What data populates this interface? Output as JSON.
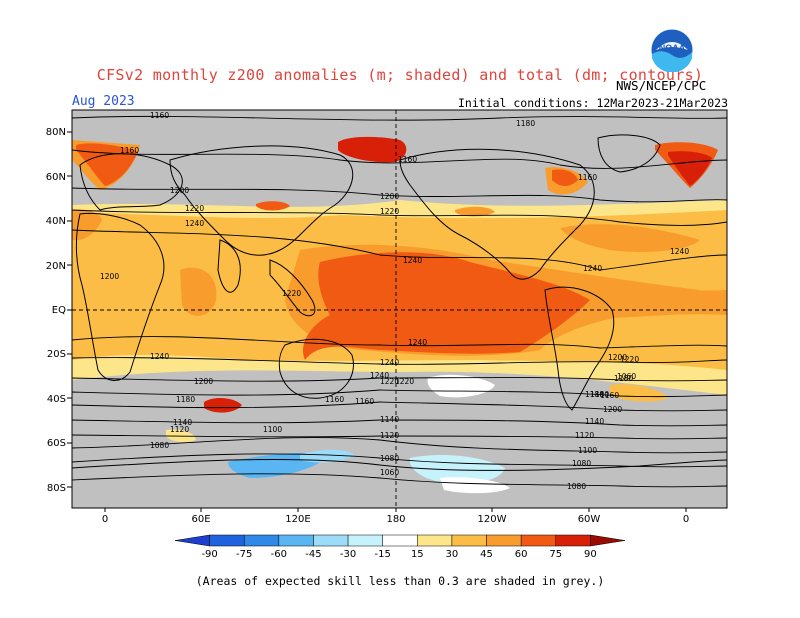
{
  "header": {
    "title": "CFSv2 monthly z200 anomalies (m; shaded) and total (dm; contours)",
    "month": "Aug 2023",
    "initial_conditions": "Initial conditions: 12Mar2023-21Mar2023",
    "agency": "NWS/NCEP/CPC",
    "logo_text": "NOAA"
  },
  "map": {
    "lat_ticks": [
      "80N",
      "60N",
      "40N",
      "20N",
      "EQ",
      "20S",
      "40S",
      "60S",
      "80S"
    ],
    "lon_ticks": [
      "0",
      "60E",
      "120E",
      "180",
      "120W",
      "60W",
      "0"
    ],
    "contour_labels": [
      "1160",
      "1160",
      "1160",
      "1180",
      "1160",
      "1200",
      "1220",
      "1240",
      "1200",
      "1220",
      "1240",
      "1200",
      "1220",
      "1240",
      "1240",
      "1240",
      "1240",
      "1240",
      "1240",
      "1220",
      "1220",
      "1200",
      "1180",
      "1200",
      "1180",
      "1160",
      "1160",
      "1140",
      "1120",
      "1100",
      "1080",
      "1140",
      "1120",
      "1080",
      "1060",
      "1080",
      "1180",
      "1140",
      "1120",
      "1100",
      "1080",
      "1060",
      "1220",
      "1200",
      "1160",
      "1180"
    ],
    "colors": {
      "land": "#000000",
      "grey": "#c0c0c0",
      "pos15": "#fde58a",
      "pos30": "#fbbd45",
      "pos45": "#f89c2d",
      "pos60": "#f15a13",
      "pos75": "#d81f07",
      "neg15": "#c6f2fb",
      "neg30": "#9cdcf8",
      "neg45": "#5ab6f2",
      "neg60": "#3088e8",
      "neg75": "#1f62de"
    }
  },
  "colorbar": {
    "labels": [
      "-90",
      "-75",
      "-60",
      "-45",
      "-30",
      "-15",
      "15",
      "30",
      "45",
      "60",
      "75",
      "90"
    ],
    "colors": [
      "#1d3fd0",
      "#1f62de",
      "#3088e8",
      "#5ab6f2",
      "#9cdcf8",
      "#c6f2fb",
      "#ffffff",
      "#fde58a",
      "#fbbd45",
      "#f89c2d",
      "#f15a13",
      "#d81f07",
      "#9c0a04"
    ]
  },
  "footnote": "(Areas of expected skill less than 0.3 are shaded in grey.)"
}
